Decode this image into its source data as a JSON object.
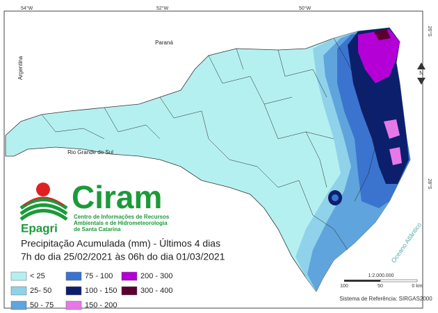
{
  "map": {
    "graticule": {
      "top": [
        "54°W",
        "52°W",
        "50°W"
      ],
      "right": [
        "26°S",
        "28°S"
      ]
    },
    "place_labels": {
      "parana": "Paraná",
      "argentina": "Argentina",
      "rio_grande": "Rio Grande do Sul",
      "ocean": "Oceano Atlântico"
    },
    "north": "N",
    "logo": {
      "name": "Ciram",
      "brand": "Epagri",
      "subtitle": [
        "Centro de Informações de Recursos",
        "Ambientais e de Hidrometeorologia",
        "de Santa Catarina"
      ]
    },
    "title": [
      "Precipitação Acumulada (mm) - Últimos 4 dias",
      "7h do dia 25/02/2021 às 06h do dia 01/03/2021"
    ],
    "legend": [
      {
        "label": "< 25",
        "color": "#b5f0f0"
      },
      {
        "label": "25- 50",
        "color": "#8fd2ea"
      },
      {
        "label": "50 - 75",
        "color": "#5fa4dc"
      },
      {
        "label": "75 - 100",
        "color": "#3a74cf"
      },
      {
        "label": "100 - 150",
        "color": "#0c1f6c"
      },
      {
        "label": "150 - 200",
        "color": "#e678e8"
      },
      {
        "label": "200 - 300",
        "color": "#b400d6"
      },
      {
        "label": "300 - 400",
        "color": "#5a0030"
      }
    ],
    "scale": {
      "ratio": "1:2.000.000",
      "ticks": [
        "100",
        "50",
        "0 km"
      ],
      "reference": "Sistema de Referência: SIRGAS2000"
    }
  }
}
